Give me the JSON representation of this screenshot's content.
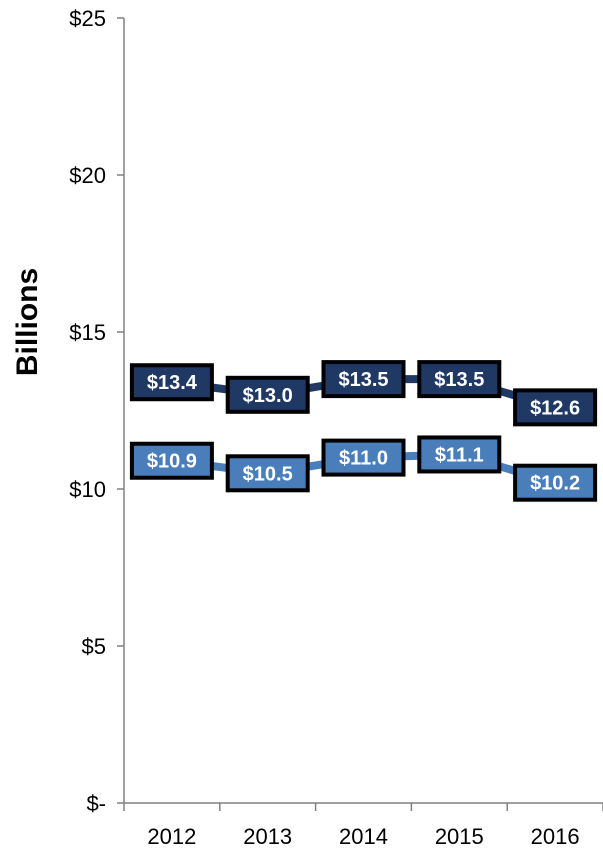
{
  "chart_data": {
    "type": "line",
    "categories": [
      "2012",
      "2013",
      "2014",
      "2015",
      "2016"
    ],
    "series": [
      {
        "values": [
          13.4,
          13.0,
          13.5,
          13.5,
          12.6
        ],
        "labels": [
          "$13.4",
          "$13.0",
          "$13.5",
          "$13.5",
          "$12.6"
        ],
        "color": "#1f3864"
      },
      {
        "values": [
          10.9,
          10.5,
          11.0,
          11.1,
          10.2
        ],
        "labels": [
          "$10.9",
          "$10.5",
          "$11.0",
          "$11.1",
          "$10.2"
        ],
        "color": "#4a7ebb"
      }
    ],
    "ylabel": "Billions",
    "ylim": [
      0,
      25
    ],
    "yticks": [
      0,
      5,
      10,
      15,
      20,
      25
    ],
    "ytick_labels": [
      "$-",
      "$5",
      "$10",
      "$15",
      "$20",
      "$25"
    ],
    "grid": false,
    "legend": "none"
  }
}
